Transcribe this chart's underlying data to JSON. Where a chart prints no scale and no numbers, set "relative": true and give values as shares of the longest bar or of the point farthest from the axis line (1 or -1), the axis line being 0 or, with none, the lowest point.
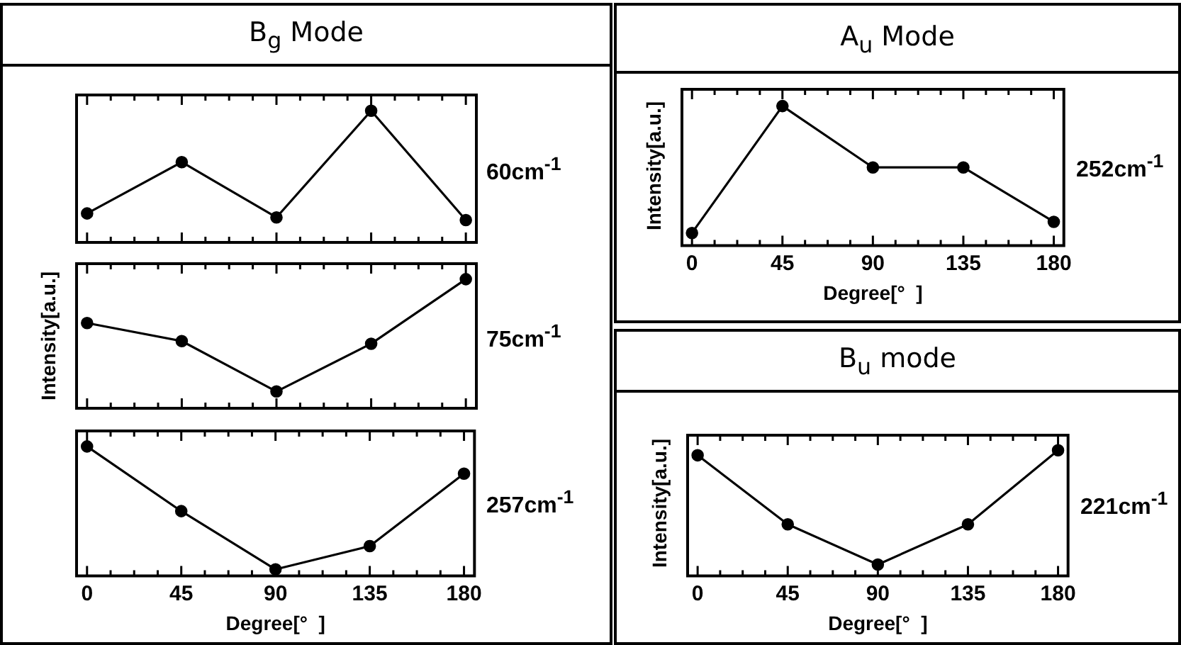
{
  "chart_data": [
    {
      "type": "line",
      "title": "B$_{g}$ Mode",
      "x": [
        0,
        45,
        90,
        135,
        180
      ],
      "values": [
        0.22,
        0.61,
        0.19,
        1,
        0.17
      ],
      "color": "#000000",
      "relative": true,
      "marker": "circle",
      "xlim": [
        -5,
        185
      ],
      "xticks": [
        0,
        {
          "value": 11.25,
          "label": null
        },
        {
          "value": 22.5,
          "label": null
        },
        {
          "value": 33.75,
          "label": null
        },
        45,
        {
          "value": 56.25,
          "label": null
        },
        {
          "value": 67.5,
          "label": null
        },
        {
          "value": 78.75,
          "label": null
        },
        90,
        {
          "value": 101.25,
          "label": null
        },
        {
          "value": 112.5,
          "label": null
        },
        {
          "value": 123.75,
          "label": null
        },
        135,
        {
          "value": 146.25,
          "label": null
        },
        {
          "value": 157.5,
          "label": null
        },
        {
          "value": 168.75,
          "label": null
        },
        180
      ],
      "tick_labels": false,
      "annotations": [
        "60cm$^{-1}$"
      ]
    },
    {
      "type": "line",
      "ylabel": "Intensity[a.u.]",
      "x": [
        0,
        45,
        90,
        135,
        180
      ],
      "values": [
        0.66,
        0.52,
        0.13,
        0.5,
        1
      ],
      "color": "#000000",
      "relative": true,
      "marker": "circle",
      "xlim": [
        -5,
        185
      ],
      "xticks": [
        0,
        {
          "value": 11.25,
          "label": null
        },
        {
          "value": 22.5,
          "label": null
        },
        {
          "value": 33.75,
          "label": null
        },
        45,
        {
          "value": 56.25,
          "label": null
        },
        {
          "value": 67.5,
          "label": null
        },
        {
          "value": 78.75,
          "label": null
        },
        90,
        {
          "value": 101.25,
          "label": null
        },
        {
          "value": 112.5,
          "label": null
        },
        {
          "value": 123.75,
          "label": null
        },
        135,
        {
          "value": 146.25,
          "label": null
        },
        {
          "value": 157.5,
          "label": null
        },
        {
          "value": 168.75,
          "label": null
        },
        180
      ],
      "tick_labels": false,
      "annotations": [
        "75cm$^{-1}$"
      ]
    },
    {
      "type": "line",
      "xlabel": "Degree[°  ]",
      "x": [
        0,
        45,
        90,
        135,
        180
      ],
      "values": [
        1,
        0.5,
        0.05,
        0.23,
        0.79
      ],
      "color": "#000000",
      "relative": true,
      "marker": "circle",
      "xlim": [
        -5,
        185
      ],
      "xticks": [
        0,
        {
          "value": 11.25,
          "label": null
        },
        {
          "value": 22.5,
          "label": null
        },
        {
          "value": 33.75,
          "label": null
        },
        45,
        {
          "value": 56.25,
          "label": null
        },
        {
          "value": 67.5,
          "label": null
        },
        {
          "value": 78.75,
          "label": null
        },
        90,
        {
          "value": 101.25,
          "label": null
        },
        {
          "value": 112.5,
          "label": null
        },
        {
          "value": 123.75,
          "label": null
        },
        135,
        {
          "value": 146.25,
          "label": null
        },
        {
          "value": 157.5,
          "label": null
        },
        {
          "value": 168.75,
          "label": null
        },
        180
      ],
      "tick_labels": "x",
      "annotations": [
        "257cm$^{-1}$"
      ]
    },
    {
      "type": "line",
      "title": "A$_{u}$ Mode",
      "xlabel": "Degree[°  ]",
      "ylabel": "Intensity[a.u.]",
      "x": [
        0,
        45,
        90,
        135,
        180
      ],
      "values": [
        0.09,
        1,
        0.56,
        0.56,
        0.17
      ],
      "color": "#000000",
      "relative": true,
      "marker": "circle",
      "xlim": [
        -5,
        185
      ],
      "xticks": [
        0,
        {
          "value": 11.25,
          "label": null
        },
        {
          "value": 22.5,
          "label": null
        },
        {
          "value": 33.75,
          "label": null
        },
        45,
        {
          "value": 56.25,
          "label": null
        },
        {
          "value": 67.5,
          "label": null
        },
        {
          "value": 78.75,
          "label": null
        },
        90,
        {
          "value": 101.25,
          "label": null
        },
        {
          "value": 112.5,
          "label": null
        },
        {
          "value": 123.75,
          "label": null
        },
        135,
        {
          "value": 146.25,
          "label": null
        },
        {
          "value": 157.5,
          "label": null
        },
        {
          "value": 168.75,
          "label": null
        },
        180
      ],
      "tick_labels": "x",
      "annotations": [
        "252cm$^{-1}$"
      ]
    },
    {
      "type": "line",
      "title": "B$_{u}$ mode",
      "xlabel": "Degree[°  ]",
      "ylabel": "Intensity[a.u.]",
      "x": [
        0,
        45,
        90,
        135,
        180
      ],
      "values": [
        0.96,
        0.41,
        0.09,
        0.41,
        1
      ],
      "color": "#000000",
      "relative": true,
      "marker": "circle",
      "xlim": [
        -5,
        185
      ],
      "xticks": [
        0,
        {
          "value": 11.25,
          "label": null
        },
        {
          "value": 22.5,
          "label": null
        },
        {
          "value": 33.75,
          "label": null
        },
        45,
        {
          "value": 56.25,
          "label": null
        },
        {
          "value": 67.5,
          "label": null
        },
        {
          "value": 78.75,
          "label": null
        },
        90,
        {
          "value": 101.25,
          "label": null
        },
        {
          "value": 112.5,
          "label": null
        },
        {
          "value": 123.75,
          "label": null
        },
        135,
        {
          "value": 146.25,
          "label": null
        },
        {
          "value": 157.5,
          "label": null
        },
        {
          "value": 168.75,
          "label": null
        },
        180
      ],
      "tick_labels": "x",
      "annotations": [
        "221cm$^{-1}$"
      ]
    }
  ]
}
